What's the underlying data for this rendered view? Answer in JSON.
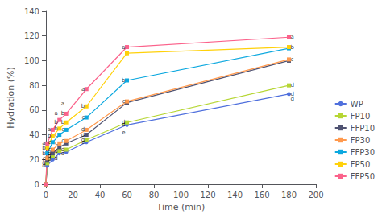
{
  "chart_data": {
    "type": "line",
    "xlabel": "Time (min)",
    "ylabel": "Hydration (%)",
    "xlim": [
      0,
      200
    ],
    "ylim": [
      0,
      140
    ],
    "xticks": [
      0,
      20,
      40,
      60,
      80,
      100,
      120,
      140,
      160,
      180,
      200
    ],
    "yticks": [
      0,
      20,
      40,
      60,
      80,
      100,
      120,
      140
    ],
    "grid": false,
    "legend": "lower right",
    "x": [
      0,
      1,
      5,
      10,
      15,
      30,
      60,
      180
    ],
    "series": [
      {
        "name": "WP",
        "marker": "circle",
        "values": [
          0,
          15,
          20,
          25,
          26,
          34,
          48,
          73
        ]
      },
      {
        "name": "FP10",
        "marker": "square",
        "values": [
          0,
          17,
          23,
          27,
          28,
          36,
          50,
          80
        ]
      },
      {
        "name": "FFP10",
        "marker": "square",
        "values": [
          0,
          19,
          25,
          30,
          33,
          40,
          66,
          100
        ]
      },
      {
        "name": "FP30",
        "marker": "square",
        "values": [
          0,
          21,
          28,
          33,
          35,
          44,
          67,
          101
        ]
      },
      {
        "name": "FFP30",
        "marker": "square",
        "values": [
          0,
          25,
          34,
          40,
          44,
          54,
          84,
          110
        ]
      },
      {
        "name": "FP50",
        "marker": "square",
        "values": [
          0,
          29,
          39,
          45,
          50,
          63,
          106,
          111
        ]
      },
      {
        "name": "FFP50",
        "marker": "square",
        "values": [
          0,
          33,
          44,
          52,
          57,
          77,
          111,
          119
        ]
      }
    ],
    "annotations": [
      {
        "text": "a",
        "x": 1,
        "y": 33
      },
      {
        "text": "b",
        "x": 1,
        "y": 29
      },
      {
        "text": "b",
        "x": 1,
        "y": 25
      },
      {
        "text": "c",
        "x": 1,
        "y": 21
      },
      {
        "text": "c",
        "x": 1,
        "y": 19
      },
      {
        "text": "d",
        "x": 1,
        "y": 17
      },
      {
        "text": "d",
        "x": 1,
        "y": 15
      },
      {
        "text": "a",
        "x": 5,
        "y": 44
      },
      {
        "text": "b",
        "x": 5,
        "y": 39
      },
      {
        "text": "c",
        "x": 5,
        "y": 34
      },
      {
        "text": "c",
        "x": 5,
        "y": 28
      },
      {
        "text": "d",
        "x": 5,
        "y": 25
      },
      {
        "text": "d",
        "x": 5,
        "y": 23
      },
      {
        "text": "d",
        "x": 5,
        "y": 20
      },
      {
        "text": "a",
        "x": 10,
        "y": 57
      },
      {
        "text": "b",
        "x": 10,
        "y": 50
      },
      {
        "text": "b",
        "x": 10,
        "y": 45
      },
      {
        "text": "c",
        "x": 10,
        "y": 40
      },
      {
        "text": "c",
        "x": 10,
        "y": 33
      },
      {
        "text": "d",
        "x": 10,
        "y": 27
      },
      {
        "text": "d",
        "x": 10,
        "y": 21
      },
      {
        "text": "a",
        "x": 15,
        "y": 65
      },
      {
        "text": "b",
        "x": 15,
        "y": 57
      },
      {
        "text": "b",
        "x": 15,
        "y": 50
      },
      {
        "text": "c",
        "x": 15,
        "y": 44
      },
      {
        "text": "c",
        "x": 15,
        "y": 35
      },
      {
        "text": "d",
        "x": 15,
        "y": 28
      },
      {
        "text": "d",
        "x": 15,
        "y": 25
      },
      {
        "text": "a",
        "x": 30,
        "y": 77
      },
      {
        "text": "b",
        "x": 30,
        "y": 63
      },
      {
        "text": "c",
        "x": 30,
        "y": 54
      },
      {
        "text": "d",
        "x": 30,
        "y": 44
      },
      {
        "text": "d",
        "x": 30,
        "y": 40
      },
      {
        "text": "d",
        "x": 30,
        "y": 36
      },
      {
        "text": "e",
        "x": 30,
        "y": 34
      },
      {
        "text": "a",
        "x": 60,
        "y": 111
      },
      {
        "text": "b",
        "x": 60,
        "y": 84
      },
      {
        "text": "c",
        "x": 60,
        "y": 67
      },
      {
        "text": "d",
        "x": 60,
        "y": 50
      },
      {
        "text": "d",
        "x": 60,
        "y": 48
      },
      {
        "text": "e",
        "x": 60,
        "y": 42
      },
      {
        "text": "a",
        "x": 180,
        "y": 119
      },
      {
        "text": "b",
        "x": 180,
        "y": 111
      },
      {
        "text": "c",
        "x": 180,
        "y": 101
      },
      {
        "text": "d",
        "x": 180,
        "y": 80
      },
      {
        "text": "d",
        "x": 180,
        "y": 73
      },
      {
        "text": "d",
        "x": 180,
        "y": 69
      }
    ]
  }
}
